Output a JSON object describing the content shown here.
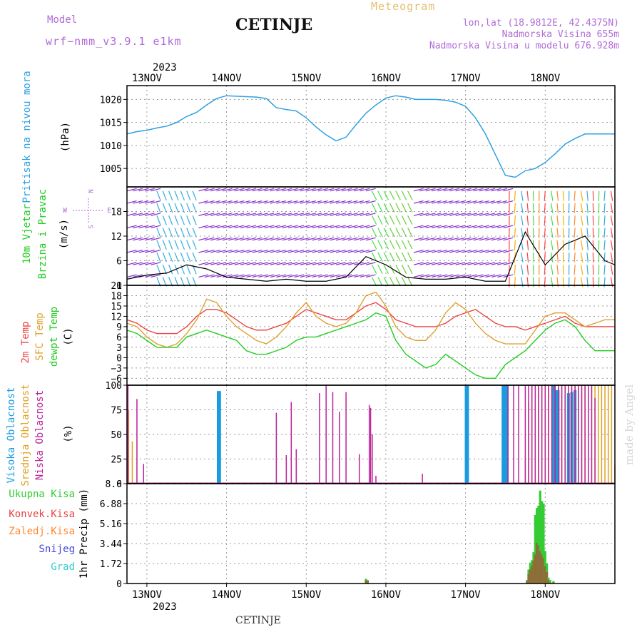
{
  "header": {
    "model_label": "Model",
    "model_name": "wrf−nmm_v3.9.1  e1km",
    "city": "CETINJE",
    "meteogram": "Meteogram",
    "lonlat": "lon,lat (18.9812E, 42.4375N)",
    "altitude": "Nadmorska Visina 655m",
    "model_altitude": "Nadmorska Visina u modelu 676.928m"
  },
  "footer": {
    "city": "CETINJE",
    "credit": "made by Angel"
  },
  "colors": {
    "pressure": "#2fa0e0",
    "temp2m": "#ee4444",
    "sfc": "#e0a030",
    "dew": "#22cc22",
    "high_cloud": "#1a9be0",
    "mid_cloud": "#e0a020",
    "low_cloud": "#bb2299",
    "precip_total": "#33cc33",
    "precip_conv": "#e84444",
    "frozen": "#ff8833",
    "snow": "#4444dd",
    "hail": "#33cccc"
  },
  "chart_data": [
    {
      "type": "line",
      "name": "pressure",
      "ylabel": [
        "Pritisak na nivou mora",
        "(hPa)"
      ],
      "ylim": [
        1001,
        1023
      ],
      "yticks": [
        "1005",
        "1010",
        "1015",
        "1020"
      ],
      "x_hours": [
        0,
        3,
        6,
        9,
        12,
        15,
        18,
        21,
        24,
        27,
        30,
        33,
        36,
        39,
        42,
        45,
        48,
        51,
        54,
        57,
        60,
        63,
        66,
        69,
        72,
        75,
        78,
        81,
        84,
        87,
        90,
        93,
        96,
        99,
        102,
        105,
        108,
        111,
        114,
        117,
        120,
        123,
        126,
        129,
        132,
        135,
        138,
        141,
        144,
        147
      ],
      "values": [
        1012.5,
        1013,
        1013.3,
        1013.8,
        1014.2,
        1015,
        1016.3,
        1017.2,
        1018.8,
        1020.2,
        1020.8,
        1020.7,
        1020.6,
        1020.5,
        1020.2,
        1018.2,
        1017.8,
        1017.5,
        1016,
        1014,
        1012.3,
        1011,
        1011.8,
        1014.5,
        1017,
        1018.8,
        1020.3,
        1020.8,
        1020.5,
        1020,
        1020,
        1020,
        1019.8,
        1019.4,
        1018.5,
        1016,
        1012.5,
        1008,
        1003.5,
        1003.1,
        1004.5,
        1005,
        1006.3,
        1008.2,
        1010.3,
        1011.5,
        1012.5,
        1012.5,
        1012.5,
        1012.5
      ]
    },
    {
      "type": "line",
      "name": "wind",
      "ylabel": [
        "10m Vjetar",
        "Brzina i Pravac",
        "(m/s)"
      ],
      "compass": [
        "N",
        "W",
        "E",
        "S"
      ],
      "ylim": [
        0,
        24
      ],
      "yticks": [
        "0",
        "6",
        "12",
        "18"
      ],
      "x_hours": [
        0,
        6,
        12,
        18,
        24,
        30,
        36,
        42,
        48,
        54,
        60,
        66,
        72,
        78,
        84,
        90,
        96,
        102,
        108,
        114,
        120,
        126,
        132,
        138,
        144,
        147
      ],
      "speed": [
        1.5,
        2.5,
        3,
        5,
        4,
        2,
        1.5,
        1,
        1.5,
        1,
        1,
        2,
        7,
        5,
        2,
        1.5,
        1.5,
        2,
        1,
        1,
        13,
        5,
        10,
        12,
        6,
        5
      ]
    },
    {
      "type": "line",
      "name": "temperature",
      "ylabel": [
        "2m Temp",
        "SFC Temp",
        "dewpt Temp",
        "(C)"
      ],
      "ylim": [
        -8,
        21
      ],
      "yticks": [
        "−6",
        "−3",
        "0",
        "3",
        "6",
        "9",
        "12",
        "15",
        "18",
        "21"
      ],
      "x_hours": [
        0,
        3,
        6,
        9,
        12,
        15,
        18,
        21,
        24,
        27,
        30,
        33,
        36,
        39,
        42,
        45,
        48,
        51,
        54,
        57,
        60,
        63,
        66,
        69,
        72,
        75,
        78,
        81,
        84,
        87,
        90,
        93,
        96,
        99,
        102,
        105,
        108,
        111,
        114,
        117,
        120,
        123,
        126,
        129,
        132,
        135,
        138,
        141,
        144,
        147
      ],
      "series": [
        {
          "name": "2m Temp",
          "values": [
            11,
            10,
            8,
            7,
            7,
            7,
            9,
            12,
            14,
            14,
            13,
            11,
            9,
            8,
            8,
            9,
            10,
            12,
            14,
            13,
            12,
            11,
            11,
            13,
            15,
            16,
            14,
            11,
            10,
            9,
            9,
            9,
            10,
            12,
            13,
            14,
            12,
            10,
            9,
            9,
            8,
            9,
            10,
            11,
            12,
            10,
            9,
            9,
            9,
            9
          ]
        },
        {
          "name": "SFC Temp",
          "values": [
            10,
            9,
            6,
            4,
            3,
            4,
            7,
            11,
            17,
            16,
            12,
            9,
            7,
            5,
            4,
            6,
            9,
            13,
            16,
            12,
            10,
            9,
            10,
            13,
            18,
            19,
            15,
            9,
            6,
            5,
            5,
            8,
            13,
            16,
            14,
            10,
            7,
            5,
            4,
            4,
            4,
            8,
            12,
            13,
            13,
            11,
            9,
            10,
            11,
            11
          ]
        },
        {
          "name": "dewpt Temp",
          "values": [
            8,
            7,
            5,
            3,
            3,
            3,
            6,
            7,
            8,
            7,
            6,
            5,
            2,
            1,
            1,
            2,
            3,
            5,
            6,
            6,
            7,
            8,
            9,
            10,
            11,
            13,
            12,
            5,
            1,
            -1,
            -3,
            -2,
            1,
            -1,
            -3,
            -5,
            -6,
            -6,
            -2,
            0,
            2,
            5,
            8,
            10,
            11,
            9,
            5,
            2,
            2,
            2
          ]
        }
      ]
    },
    {
      "type": "bar",
      "name": "clouds",
      "ylabel": [
        "Visoka Oblacnost",
        "Srednja Oblacnost",
        "Niska Oblacnost",
        "(%)"
      ],
      "ylim": [
        0,
        100
      ],
      "yticks": [
        "0",
        "25",
        "50",
        "75",
        "100"
      ],
      "series": [
        {
          "name": "Visoka Oblacnost",
          "x_hours": [
            27.5,
            27.7,
            27.9,
            102.2,
            102.4,
            102.6,
            113.3,
            113.5,
            113.7,
            113.9,
            114.1,
            114.3,
            114.5,
            128.5,
            129.2,
            129.9,
            133,
            134,
            135
          ],
          "values": [
            94,
            94,
            94,
            100,
            100,
            100,
            100,
            100,
            100,
            100,
            100,
            100,
            100,
            100,
            95,
            95,
            92,
            93,
            95
          ]
        },
        {
          "name": "Srednja Oblacnost",
          "x_hours": [
            0.2,
            0.5,
            1.6,
            120,
            121,
            122,
            123,
            124,
            125,
            126,
            127,
            128,
            129,
            130,
            131,
            132,
            133,
            134,
            135,
            136,
            137,
            138,
            139,
            140,
            141,
            142,
            143,
            144,
            145,
            146,
            147
          ],
          "values": [
            100,
            75,
            43,
            27,
            83,
            100,
            85,
            100,
            100,
            100,
            100,
            100,
            100,
            100,
            100,
            100,
            100,
            100,
            100,
            100,
            100,
            100,
            100,
            100,
            100,
            100,
            100,
            100,
            100,
            100,
            19
          ]
        },
        {
          "name": "Niska Oblacnost",
          "x_hours": [
            0.3,
            3,
            5,
            45,
            48,
            49.5,
            51,
            58,
            60,
            62,
            64,
            66,
            70,
            73,
            73.4,
            73.9,
            75,
            89,
            114.8,
            116.5,
            118,
            120,
            121,
            122,
            123,
            124,
            125,
            126,
            127,
            128,
            129,
            130,
            131,
            132,
            133,
            134,
            135,
            136,
            137,
            138,
            139,
            140,
            141
          ],
          "values": [
            100,
            86,
            20,
            72,
            29,
            83,
            35,
            92,
            100,
            93,
            73,
            93,
            30,
            80,
            77,
            50,
            8,
            10,
            100,
            100,
            100,
            100,
            100,
            100,
            100,
            100,
            100,
            100,
            100,
            100,
            100,
            100,
            100,
            100,
            100,
            100,
            100,
            100,
            100,
            100,
            100,
            100,
            87
          ]
        }
      ]
    },
    {
      "type": "bar",
      "name": "precip",
      "ylabel": [
        "Ukupna Kisa",
        "Konvek.Kisa",
        "Zaledj.Kisa",
        "Snijeg",
        "Grad",
        "1hr Precip (mm)"
      ],
      "ylim": [
        0,
        8.6
      ],
      "yticks": [
        "0",
        "1.72",
        "3.44",
        "5.16",
        "6.88",
        "8.6"
      ],
      "x_hours": [
        72,
        72.5,
        120.5,
        121,
        121.5,
        122,
        122.5,
        123,
        123.5,
        124,
        124.5,
        125,
        125.5,
        126,
        126.5,
        127,
        127.5,
        128.5
      ],
      "series": [
        {
          "name": "Ukupna Kisa",
          "values": [
            0.4,
            0.3,
            0.3,
            1.2,
            1.8,
            2,
            2.7,
            5.9,
            6.5,
            6.7,
            8,
            7.1,
            6.9,
            2.8,
            1.7,
            0.5,
            0.3,
            0.2
          ]
        },
        {
          "name": "Konvek.Kisa",
          "values": [
            0.3,
            0.2,
            0.2,
            0.8,
            1.2,
            1.5,
            2,
            2.5,
            3.5,
            3.3,
            2.8,
            2.5,
            2.2,
            1.5,
            1,
            0.3,
            0.1,
            0.1
          ]
        }
      ]
    }
  ],
  "x_axis": {
    "year": "2023",
    "days": [
      {
        "label": "13NOV",
        "hour": 6
      },
      {
        "label": "14NOV",
        "hour": 30
      },
      {
        "label": "15NOV",
        "hour": 54
      },
      {
        "label": "16NOV",
        "hour": 78
      },
      {
        "label": "17NOV",
        "hour": 102
      },
      {
        "label": "18NOV",
        "hour": 126
      }
    ]
  }
}
